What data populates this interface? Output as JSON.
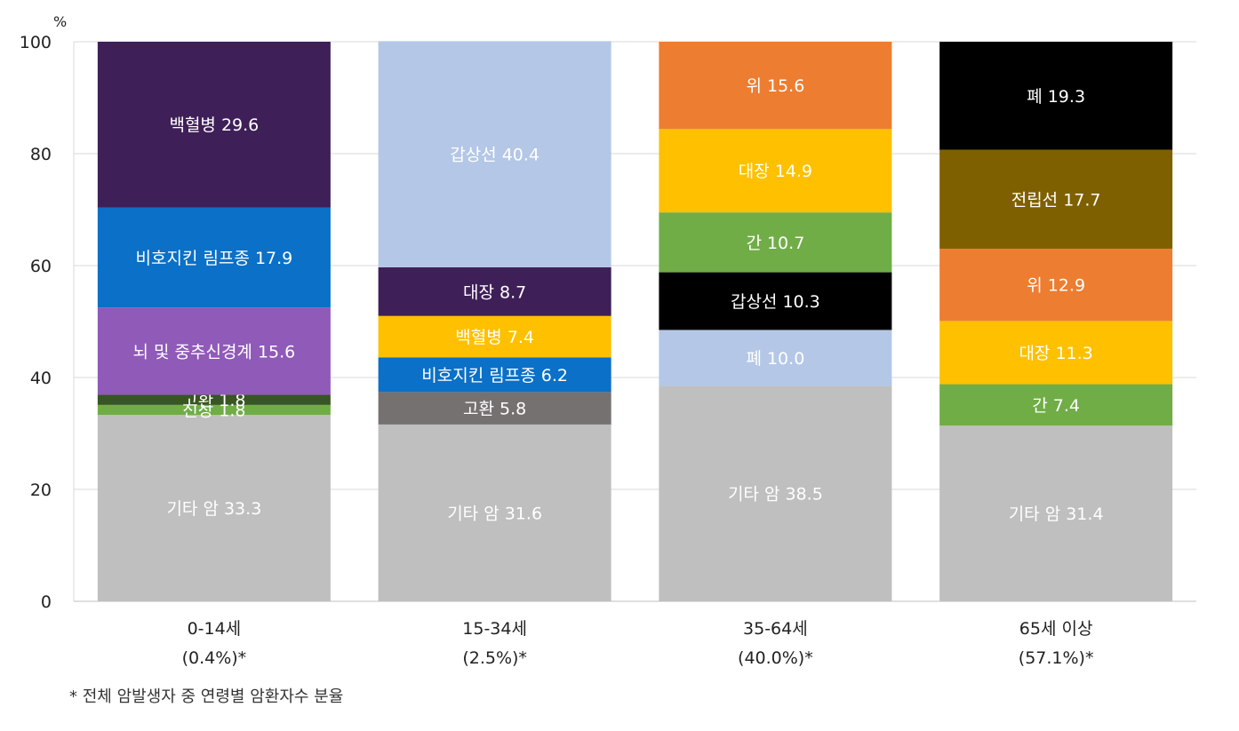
{
  "chart_data": {
    "type": "bar",
    "stacked": true,
    "percent_stacked": true,
    "y_unit": "%",
    "ylim": [
      0,
      100
    ],
    "y_ticks": [
      0,
      20,
      40,
      60,
      80,
      100
    ],
    "grid": true,
    "categories": [
      {
        "line1": "0-14세",
        "line2": "(0.4%)*"
      },
      {
        "line1": "15-34세",
        "line2": "(2.5%)*"
      },
      {
        "line1": "35-64세",
        "line2": "(40.0%)*"
      },
      {
        "line1": "65세 이상",
        "line2": "(57.1%)*"
      }
    ],
    "stacks": [
      [
        {
          "label": "기타 암",
          "value": 33.3,
          "color": "#bfbfbf",
          "text_color": "#ffffff"
        },
        {
          "label": "신장",
          "value": 1.8,
          "color": "#70ad47",
          "text_color": "#ffffff"
        },
        {
          "label": "고환",
          "value": 1.8,
          "color": "#375623",
          "text_color": "#ffffff"
        },
        {
          "label": "뇌 및 중추신경계",
          "value": 15.6,
          "color": "#8f5ab8",
          "text_color": "#ffffff"
        },
        {
          "label": "비호지킨 림프종",
          "value": 17.9,
          "color": "#0a70c8",
          "text_color": "#ffffff"
        },
        {
          "label": "백혈병",
          "value": 29.6,
          "color": "#3f1f58",
          "text_color": "#ffffff"
        }
      ],
      [
        {
          "label": "기타 암",
          "value": 31.6,
          "color": "#bfbfbf",
          "text_color": "#ffffff"
        },
        {
          "label": "고환",
          "value": 5.8,
          "color": "#767171",
          "text_color": "#ffffff"
        },
        {
          "label": "비호지킨 림프종",
          "value": 6.2,
          "color": "#0a70c8",
          "text_color": "#ffffff"
        },
        {
          "label": "백혈병",
          "value": 7.4,
          "color": "#ffc000",
          "text_color": "#ffffff"
        },
        {
          "label": "대장",
          "value": 8.7,
          "color": "#3f1f58",
          "text_color": "#ffffff"
        },
        {
          "label": "갑상선",
          "value": 40.4,
          "color": "#b4c7e7",
          "text_color": "#ffffff"
        }
      ],
      [
        {
          "label": "기타 암",
          "value": 38.5,
          "color": "#bfbfbf",
          "text_color": "#ffffff"
        },
        {
          "label": "폐",
          "value": 10.0,
          "color": "#b4c7e7",
          "text_color": "#ffffff"
        },
        {
          "label": "갑상선",
          "value": 10.3,
          "color": "#000000",
          "text_color": "#ffffff"
        },
        {
          "label": "간",
          "value": 10.7,
          "color": "#70ad47",
          "text_color": "#ffffff"
        },
        {
          "label": "대장",
          "value": 14.9,
          "color": "#ffc000",
          "text_color": "#ffffff"
        },
        {
          "label": "위",
          "value": 15.6,
          "color": "#ed7d31",
          "text_color": "#ffffff"
        }
      ],
      [
        {
          "label": "기타 암",
          "value": 31.4,
          "color": "#bfbfbf",
          "text_color": "#ffffff"
        },
        {
          "label": "간",
          "value": 7.4,
          "color": "#70ad47",
          "text_color": "#ffffff"
        },
        {
          "label": "대장",
          "value": 11.3,
          "color": "#ffc000",
          "text_color": "#ffffff"
        },
        {
          "label": "위",
          "value": 12.9,
          "color": "#ed7d31",
          "text_color": "#ffffff"
        },
        {
          "label": "전립선",
          "value": 17.7,
          "color": "#7f6000",
          "text_color": "#ffffff"
        },
        {
          "label": "폐",
          "value": 19.3,
          "color": "#000000",
          "text_color": "#ffffff"
        }
      ]
    ],
    "footnote": "* 전체 암발생자 중 연령별 암환자수 분율"
  }
}
